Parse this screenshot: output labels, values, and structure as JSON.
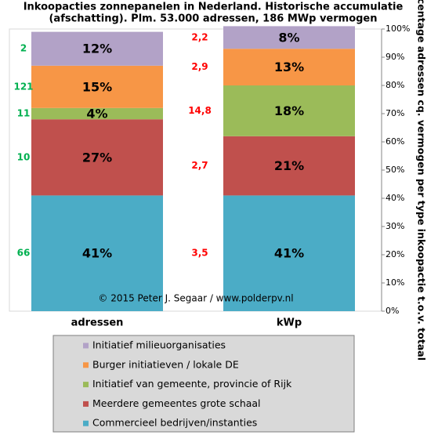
{
  "chart_data": {
    "type": "stacked-bar",
    "title": "Inkoopacties zonnepanelen in Nederland. Historische accumulatie",
    "subtitle": "(afschatting). Plm. 53.000 adressen, 186 MWp vermogen",
    "y_axis_label": "Percentage adressen cq. vermogen per type inkoopactie t.o.v. totaal",
    "annotation": "© 2015 Peter J. Segaar / www.polderpv.nl",
    "categories": [
      "adressen",
      "kWp"
    ],
    "series": [
      {
        "name": "Commercieel bedrijven/instanties",
        "color": "#4bacc6",
        "values": [
          41,
          41
        ],
        "value_labels": [
          "41%",
          "41%"
        ]
      },
      {
        "name": "Meerdere gemeentes grote schaal",
        "color": "#c0504d",
        "values": [
          27,
          21
        ],
        "value_labels": [
          "27%",
          "21%"
        ]
      },
      {
        "name": "Initiatief van gemeente, provincie of Rijk",
        "color": "#9bbb59",
        "values": [
          4,
          18
        ],
        "value_labels": [
          "4%",
          "18%"
        ]
      },
      {
        "name": "Burger initiatieven / lokale DE",
        "color": "#f79646",
        "values": [
          15,
          13
        ],
        "value_labels": [
          "15%",
          "13%"
        ]
      },
      {
        "name": "Initiatief milieuorganisaties",
        "color": "#b2a2c7",
        "values": [
          12,
          8
        ],
        "value_labels": [
          "12%",
          "8%"
        ]
      }
    ],
    "side_notes": [
      {
        "color": "#00b050",
        "texts": [
          "66",
          "10",
          "11",
          "121",
          "2"
        ]
      },
      {
        "color": "#ff0000",
        "texts": [
          "3,5",
          "2,7",
          "14,8",
          "2,9",
          "2,2"
        ]
      }
    ],
    "ylim": [
      0,
      100
    ],
    "yticks": [
      {
        "value": 0,
        "label": "0%"
      },
      {
        "value": 10,
        "label": "10%"
      },
      {
        "value": 20,
        "label": "20%"
      },
      {
        "value": 30,
        "label": "30%"
      },
      {
        "value": 40,
        "label": "40%"
      },
      {
        "value": 50,
        "label": "50%"
      },
      {
        "value": 60,
        "label": "60%"
      },
      {
        "value": 70,
        "label": "70%"
      },
      {
        "value": 80,
        "label": "80%"
      },
      {
        "value": 90,
        "label": "90%"
      },
      {
        "value": 100,
        "label": "100%"
      }
    ]
  }
}
